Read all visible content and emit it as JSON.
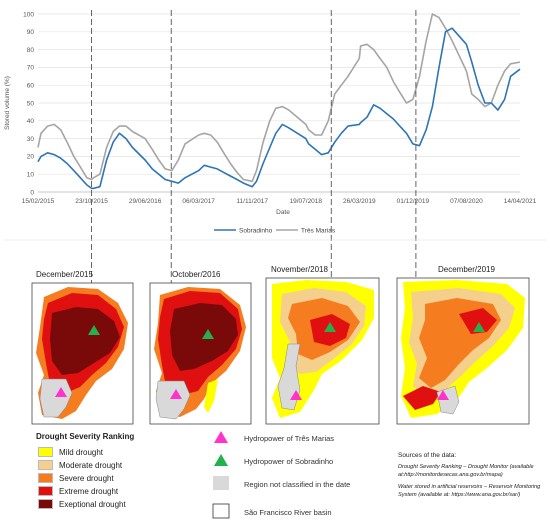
{
  "chart_data": {
    "type": "line",
    "ylabel": "Stored volume (%)",
    "xlabel": "Date",
    "ylim": [
      0,
      100
    ],
    "yticks": [
      "0",
      "10",
      "20",
      "30",
      "40",
      "50",
      "60",
      "70",
      "80",
      "90",
      "100"
    ],
    "xticks": [
      "15/02/2015",
      "23/10/2015",
      "29/06/2016",
      "06/03/2017",
      "11/11/2017",
      "19/07/2018",
      "26/03/2019",
      "01/12/2019",
      "07/08/2020",
      "14/04/2021"
    ],
    "grid": "horizontal",
    "legend_position": "bottom",
    "series": [
      {
        "name": "Sobradinho",
        "color": "#2e75b6",
        "x": [
          "15/02/2015",
          "01/03/2015",
          "01/04/2015",
          "01/05/2015",
          "01/06/2015",
          "01/07/2015",
          "01/08/2015",
          "01/09/2015",
          "01/10/2015",
          "23/10/2015",
          "01/11/2015",
          "01/12/2015",
          "01/01/2016",
          "01/02/2016",
          "01/03/2016",
          "01/04/2016",
          "01/05/2016",
          "29/06/2016",
          "01/08/2016",
          "01/09/2016",
          "01/10/2016",
          "01/11/2016",
          "01/12/2016",
          "01/01/2017",
          "06/03/2017",
          "01/04/2017",
          "01/05/2017",
          "01/06/2017",
          "01/07/2017",
          "01/08/2017",
          "01/09/2017",
          "01/10/2017",
          "11/11/2017",
          "01/12/2017",
          "01/01/2018",
          "01/02/2018",
          "01/03/2018",
          "01/04/2018",
          "01/05/2018",
          "19/07/2018",
          "01/08/2018",
          "01/09/2018",
          "01/10/2018",
          "01/11/2018",
          "01/12/2018",
          "01/01/2019",
          "01/02/2019",
          "26/03/2019",
          "01/04/2019",
          "01/05/2019",
          "01/06/2019",
          "01/07/2019",
          "01/08/2019",
          "01/09/2019",
          "01/10/2019",
          "01/11/2019",
          "01/12/2019",
          "01/01/2020",
          "01/02/2020",
          "01/03/2020",
          "01/04/2020",
          "01/05/2020",
          "01/06/2020",
          "07/08/2020",
          "01/09/2020",
          "01/10/2020",
          "01/11/2020",
          "01/12/2020",
          "01/01/2021",
          "01/02/2021",
          "01/03/2021",
          "14/04/2021"
        ],
        "y": [
          17,
          20,
          22,
          21,
          19,
          16,
          12,
          8,
          4,
          2,
          2,
          3,
          18,
          28,
          33,
          30,
          25,
          18,
          13,
          10,
          7,
          6,
          5,
          8,
          12,
          15,
          14,
          13,
          11,
          9,
          7,
          5,
          3,
          6,
          16,
          25,
          33,
          38,
          36,
          30,
          27,
          24,
          21,
          22,
          28,
          33,
          37,
          38,
          39,
          42,
          49,
          47,
          44,
          41,
          37,
          33,
          27,
          26,
          35,
          48,
          70,
          90,
          92,
          83,
          73,
          60,
          50,
          50,
          46,
          52,
          65,
          69
        ]
      },
      {
        "name": "Três Marias",
        "color": "#a5a5a5",
        "x": [
          "15/02/2015",
          "01/03/2015",
          "01/04/2015",
          "01/05/2015",
          "01/06/2015",
          "01/07/2015",
          "01/08/2015",
          "01/09/2015",
          "01/10/2015",
          "23/10/2015",
          "01/11/2015",
          "01/12/2015",
          "01/01/2016",
          "01/02/2016",
          "01/03/2016",
          "01/04/2016",
          "01/05/2016",
          "29/06/2016",
          "01/08/2016",
          "01/09/2016",
          "01/10/2016",
          "01/11/2016",
          "01/12/2016",
          "01/01/2017",
          "06/03/2017",
          "01/04/2017",
          "01/05/2017",
          "01/06/2017",
          "01/07/2017",
          "01/08/2017",
          "01/09/2017",
          "01/10/2017",
          "11/11/2017",
          "01/12/2017",
          "01/01/2018",
          "01/02/2018",
          "01/03/2018",
          "01/04/2018",
          "01/05/2018",
          "19/07/2018",
          "01/08/2018",
          "01/09/2018",
          "01/10/2018",
          "01/11/2018",
          "01/12/2018",
          "01/01/2019",
          "01/02/2019",
          "26/03/2019",
          "01/04/2019",
          "01/05/2019",
          "01/06/2019",
          "01/07/2019",
          "01/08/2019",
          "01/09/2019",
          "01/10/2019",
          "01/11/2019",
          "01/12/2019",
          "01/01/2020",
          "01/02/2020",
          "01/03/2020",
          "01/04/2020",
          "01/05/2020",
          "01/06/2020",
          "07/08/2020",
          "01/09/2020",
          "01/10/2020",
          "01/11/2020",
          "01/12/2020",
          "01/01/2021",
          "01/02/2021",
          "01/03/2021",
          "14/04/2021"
        ],
        "y": [
          25,
          33,
          37,
          38,
          35,
          28,
          20,
          14,
          8,
          7,
          8,
          10,
          25,
          34,
          37,
          37,
          34,
          30,
          24,
          18,
          13,
          12,
          18,
          27,
          32,
          33,
          32,
          28,
          22,
          16,
          11,
          7,
          6,
          12,
          28,
          40,
          47,
          48,
          46,
          38,
          35,
          32,
          32,
          40,
          55,
          60,
          65,
          75,
          82,
          83,
          80,
          75,
          70,
          62,
          56,
          50,
          52,
          65,
          85,
          100,
          98,
          92,
          85,
          68,
          55,
          52,
          48,
          50,
          60,
          68,
          72,
          73
        ]
      }
    ]
  },
  "maps": [
    {
      "title": "December/2015"
    },
    {
      "title": "October/2016"
    },
    {
      "title": "November/2018"
    },
    {
      "title": "December/2019"
    }
  ],
  "legend": {
    "title": "Drought Severity Ranking",
    "items": [
      {
        "label": "Mild drought",
        "color": "#ffff00"
      },
      {
        "label": "Moderate drought",
        "color": "#f5cf8c"
      },
      {
        "label": "Severe drought",
        "color": "#f57c1f"
      },
      {
        "label": "Extreme drought",
        "color": "#e01010"
      },
      {
        "label": "Exeptional drought",
        "color": "#7a0a0a"
      }
    ],
    "symbols": [
      {
        "label": "Hydropower of Três Marias",
        "color": "#ff33cc"
      },
      {
        "label": "Hydropower of Sobradinho",
        "color": "#22b14c"
      },
      {
        "label": "Region not classified in the date",
        "color": "#d9d9d9"
      },
      {
        "label": "São Francisco River basin",
        "color": "#ffffff"
      }
    ]
  },
  "sources": {
    "title": "Sources of the data:",
    "line1": "Drought Severity Ranking – Drought Monitor (available at:http://monitordesecas.ana.gov.br/mapa)",
    "line2": "Water stored in artificial reservoirs – Reservoir Monitoring System (available at: https://www.ana.gov.br/sar/)"
  }
}
